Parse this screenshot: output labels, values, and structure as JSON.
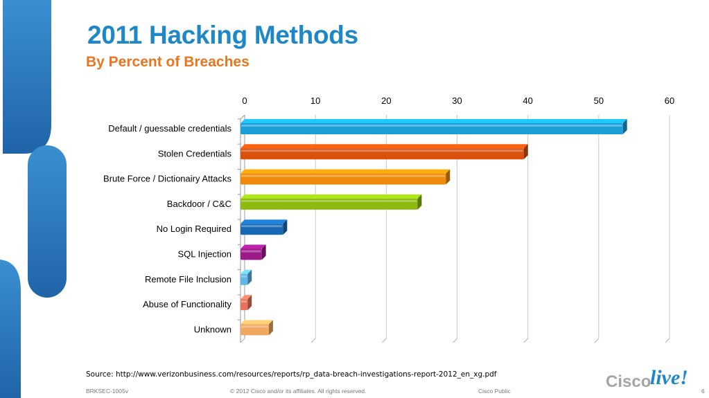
{
  "slide": {
    "title": "2011 Hacking Methods",
    "subtitle": "By Percent of Breaches",
    "source": "Source: http://www.verizonbusiness.com/resources/reports/rp_data-breach-investigations-report-2012_en_xg.pdf",
    "footer_left": "BRKSEC-1005v",
    "footer_center": "© 2012 Cisco and/or its affiliates. All rights reserved.",
    "footer_right": "Cisco Public",
    "page_number": "6",
    "logo_text_1": "Cisco",
    "logo_text_2": "live!"
  },
  "colors": {
    "title": "#1e87c8",
    "subtitle": "#e8761e",
    "deco_blue": "#2b73b8"
  },
  "chart_data": {
    "type": "bar",
    "orientation": "horizontal",
    "categories": [
      "Default / guessable credentials",
      "Stolen Credentials",
      "Brute Force / Dictionairy Attacks",
      "Backdoor / C&C",
      "No Login Required",
      "SQL Injection",
      "Remote File Inclusion",
      "Abuse of Functionality",
      "Unknown"
    ],
    "values": [
      54,
      40,
      29,
      25,
      6,
      3,
      1,
      1,
      4
    ],
    "colors": [
      "#1a9fd6",
      "#d94f0c",
      "#f08a0a",
      "#8cba10",
      "#1769b3",
      "#9b1a8a",
      "#5eb6e8",
      "#e8735a",
      "#f0a860"
    ],
    "xlim": [
      0,
      60
    ],
    "ticks": [
      0,
      10,
      20,
      30,
      40,
      50,
      60
    ],
    "axis_position": "top",
    "grid": true
  }
}
